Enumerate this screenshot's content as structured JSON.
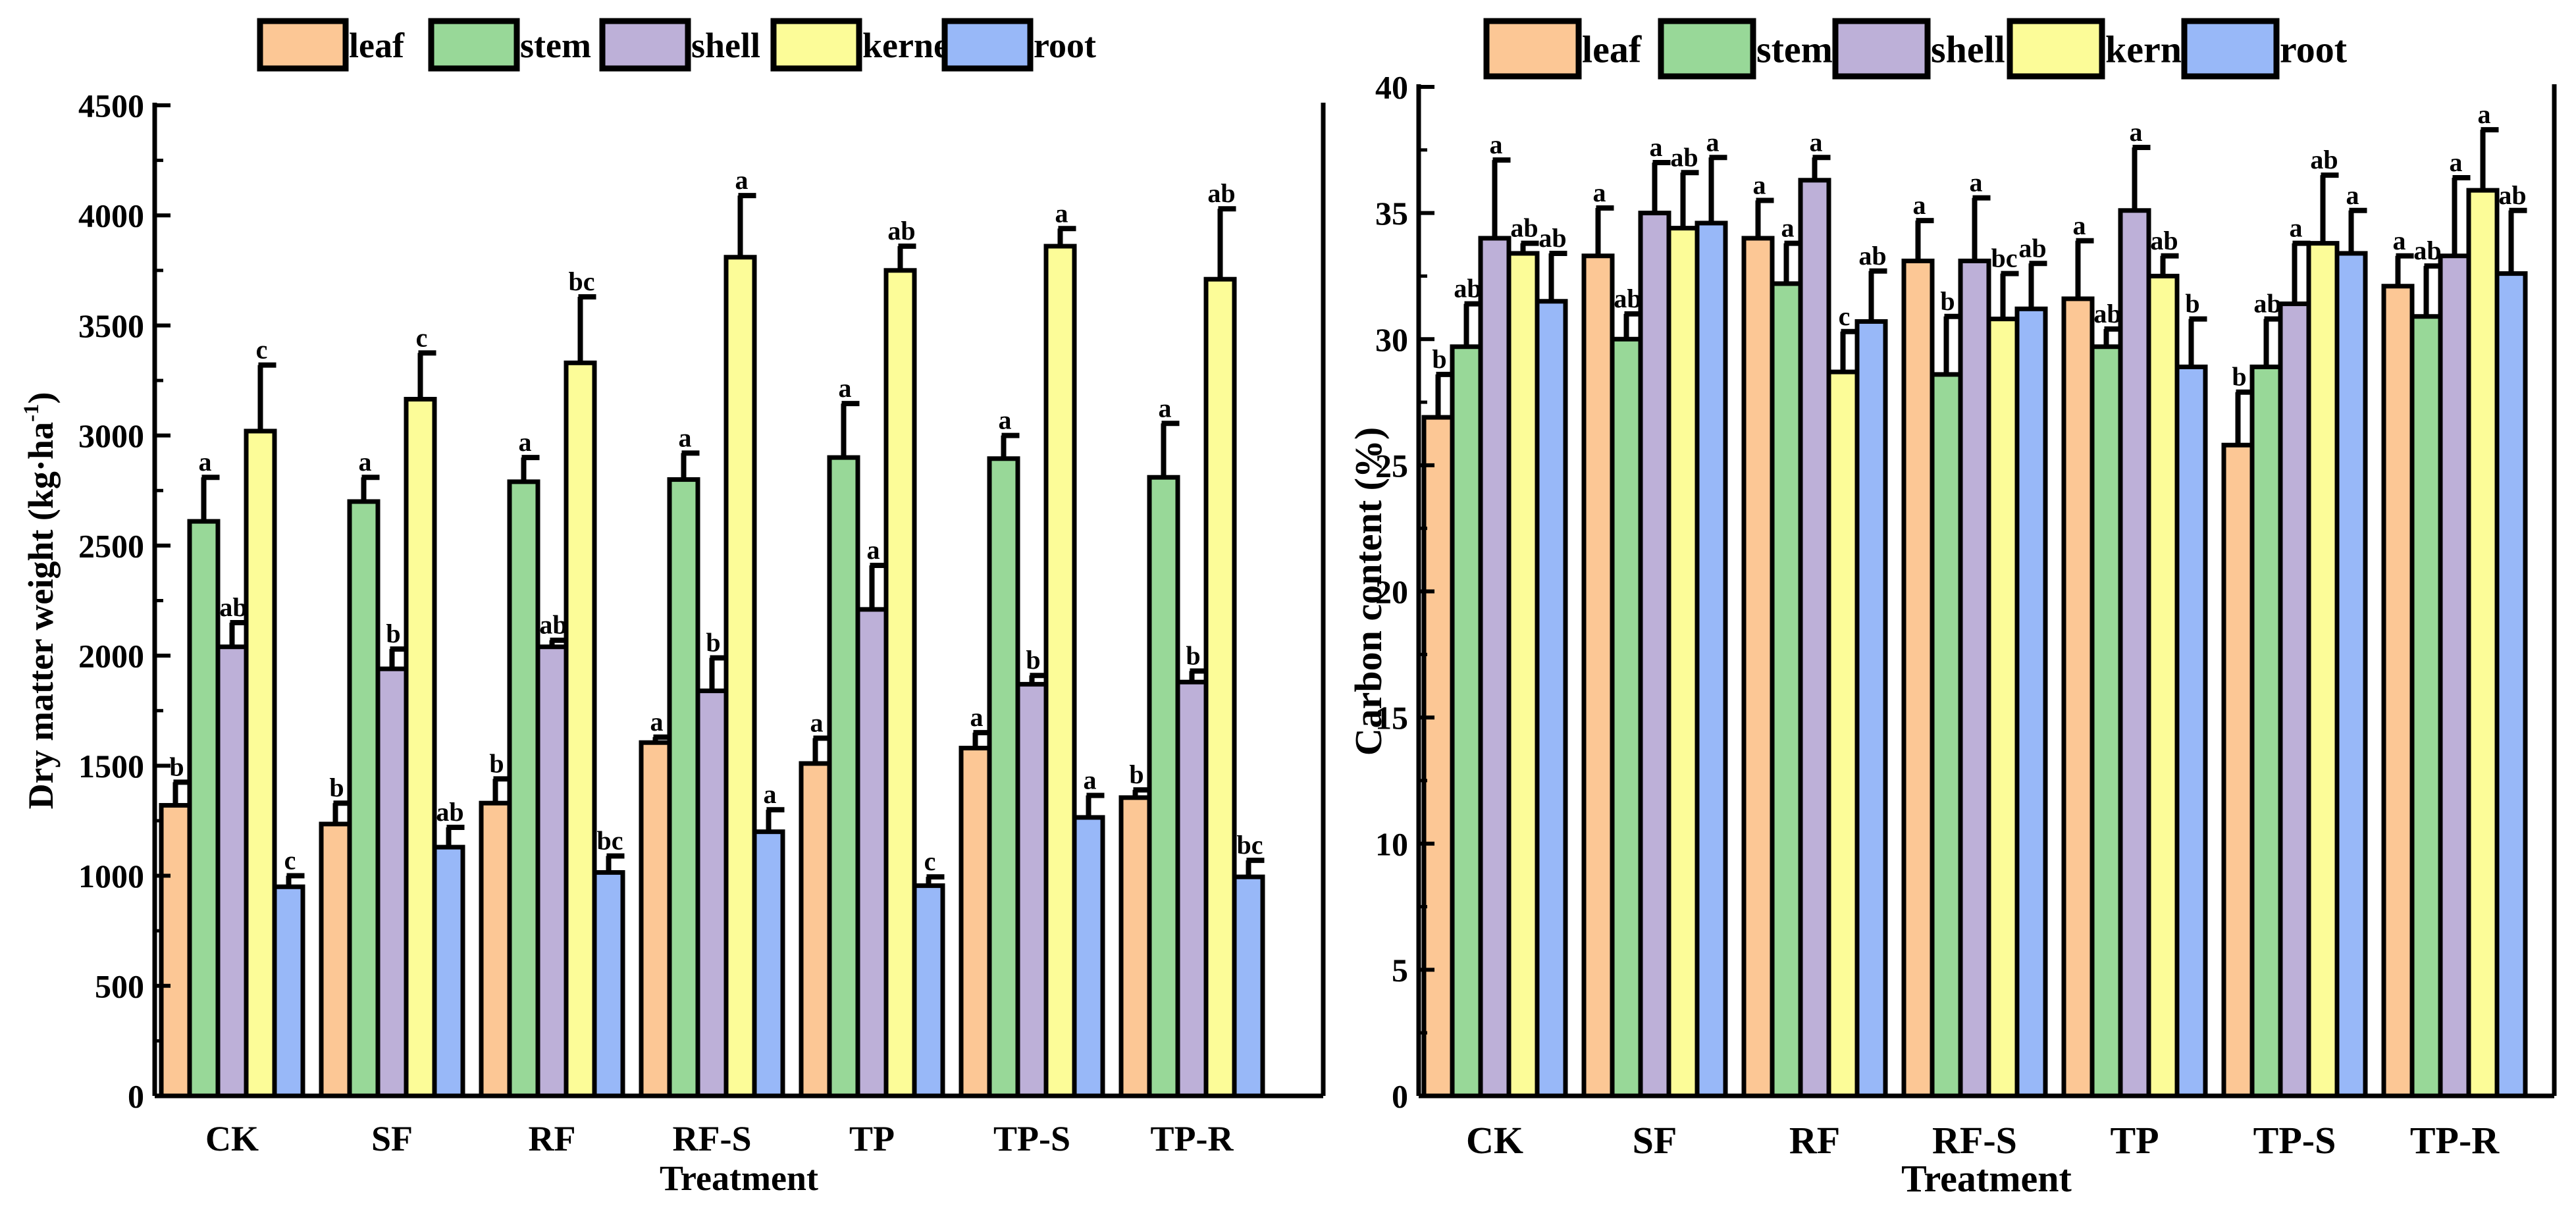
{
  "series_colors": {
    "leaf": "#FCC795",
    "stem": "#98D898",
    "shell": "#BDB0D8",
    "kernel": "#FCFC98",
    "root": "#98B8F8"
  },
  "legend": {
    "labels": [
      "leaf",
      "stem",
      "shell",
      "kernel",
      "root"
    ]
  },
  "chart_data": [
    {
      "type": "bar",
      "title": "",
      "xlabel": "Treatment",
      "ylabel": "Dry matter weight (kg·ha",
      "ylabel_sup": "-1",
      "ylabel_close": ")",
      "ylim": [
        0,
        4500
      ],
      "yticks": [
        0,
        500,
        1000,
        1500,
        2000,
        2500,
        3000,
        3500,
        4000,
        4500
      ],
      "ytick_labels": [
        "0",
        "500",
        "1000",
        "1500",
        "2000",
        "2500",
        "3000",
        "3500",
        "4000",
        "4500"
      ],
      "categories": [
        "CK",
        "SF",
        "RF",
        "RF-S",
        "TP",
        "TP-S",
        "TP-R"
      ],
      "series": [
        {
          "name": "leaf",
          "values": [
            1320,
            1235,
            1330,
            1605,
            1510,
            1580,
            1355
          ],
          "errors": [
            105,
            95,
            110,
            25,
            115,
            70,
            35
          ],
          "letters": [
            "b",
            "b",
            "b",
            "a",
            "a",
            "a",
            "b"
          ]
        },
        {
          "name": "stem",
          "values": [
            2610,
            2700,
            2790,
            2800,
            2900,
            2895,
            2810
          ],
          "errors": [
            200,
            110,
            110,
            120,
            245,
            105,
            245
          ],
          "letters": [
            "a",
            "a",
            "a",
            "a",
            "a",
            "a",
            "a"
          ]
        },
        {
          "name": "shell",
          "values": [
            2040,
            1940,
            2040,
            1840,
            2210,
            1870,
            1880
          ],
          "errors": [
            110,
            90,
            30,
            150,
            200,
            40,
            50
          ],
          "letters": [
            "ab",
            "b",
            "ab",
            "b",
            "a",
            "b",
            "b"
          ]
        },
        {
          "name": "kernel",
          "values": [
            3020,
            3165,
            3330,
            3810,
            3750,
            3860,
            3710
          ],
          "errors": [
            300,
            210,
            300,
            280,
            110,
            80,
            320
          ],
          "letters": [
            "c",
            "c",
            "bc",
            "a",
            "ab",
            "a",
            "ab"
          ]
        },
        {
          "name": "root",
          "values": [
            950,
            1130,
            1015,
            1200,
            955,
            1265,
            995
          ],
          "errors": [
            50,
            90,
            75,
            100,
            40,
            100,
            75
          ],
          "letters": [
            "c",
            "ab",
            "bc",
            "a",
            "c",
            "a",
            "bc"
          ]
        }
      ]
    },
    {
      "type": "bar",
      "title": "",
      "xlabel": "Treatment",
      "ylabel": "Carbon content (%)",
      "ylim": [
        0,
        40
      ],
      "yticks": [
        0,
        5,
        10,
        15,
        20,
        25,
        30,
        35,
        40
      ],
      "ytick_labels": [
        "0",
        "5",
        "10",
        "15",
        "20",
        "25",
        "30",
        "35",
        "40"
      ],
      "categories": [
        "CK",
        "SF",
        "RF",
        "RF-S",
        "TP",
        "TP-S",
        "TP-R"
      ],
      "series": [
        {
          "name": "leaf",
          "values": [
            26.9,
            33.3,
            34.0,
            33.1,
            31.6,
            25.8,
            32.1
          ],
          "errors": [
            1.7,
            1.9,
            1.5,
            1.6,
            2.3,
            2.1,
            1.2
          ],
          "letters": [
            "b",
            "a",
            "a",
            "a",
            "a",
            "b",
            "a"
          ]
        },
        {
          "name": "stem",
          "values": [
            29.7,
            30.0,
            32.2,
            28.6,
            29.7,
            28.9,
            30.9
          ],
          "errors": [
            1.7,
            1.0,
            1.6,
            2.3,
            0.7,
            1.9,
            2.0
          ],
          "letters": [
            "ab",
            "ab",
            "a",
            "b",
            "ab",
            "ab",
            "ab"
          ]
        },
        {
          "name": "shell",
          "values": [
            34.0,
            35.0,
            36.3,
            33.1,
            35.1,
            31.4,
            33.3
          ],
          "errors": [
            3.1,
            2.0,
            0.9,
            2.5,
            2.5,
            2.4,
            3.1
          ],
          "letters": [
            "a",
            "a",
            "a",
            "a",
            "a",
            "a",
            "a"
          ]
        },
        {
          "name": "kernel",
          "values": [
            33.4,
            34.4,
            28.7,
            30.8,
            32.5,
            33.8,
            35.9
          ],
          "errors": [
            0.4,
            2.2,
            1.6,
            1.8,
            0.8,
            2.7,
            2.4
          ],
          "letters": [
            "ab",
            "ab",
            "c",
            "bc",
            "ab",
            "ab",
            "a"
          ]
        },
        {
          "name": "root",
          "values": [
            31.5,
            34.6,
            30.7,
            31.2,
            28.9,
            33.4,
            32.6
          ],
          "errors": [
            1.9,
            2.6,
            2.0,
            1.8,
            1.9,
            1.7,
            2.5
          ],
          "letters": [
            "ab",
            "a",
            "ab",
            "ab",
            "b",
            "a",
            "ab"
          ]
        }
      ]
    }
  ]
}
